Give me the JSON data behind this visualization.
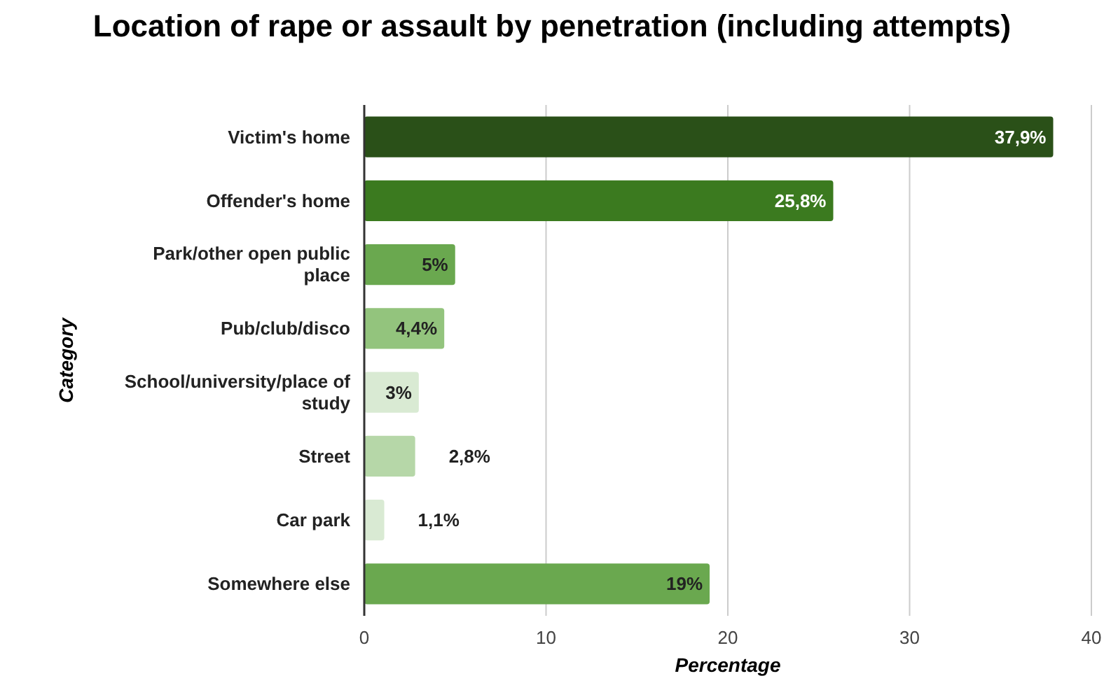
{
  "chart_data": {
    "type": "bar",
    "orientation": "horizontal",
    "title": "Location of rape or assault by penetration (including attempts)",
    "xlabel": "Percentage",
    "ylabel": "Category",
    "categories": [
      "Victim's home",
      "Offender's home",
      "Park/other open public place",
      "Pub/club/disco",
      "School/university/place of study",
      "Street",
      "Car park",
      "Somewhere else"
    ],
    "values": [
      37.9,
      25.8,
      5,
      4.4,
      3,
      2.8,
      1.1,
      19
    ],
    "colors": [
      "#2a5018",
      "#3b7a1f",
      "#6aa84f",
      "#93c47d",
      "#d9ead3",
      "#b6d7a8",
      "#d9ead3",
      "#6aa84f"
    ],
    "value_labels": [
      "37,9%",
      "25,8%",
      "5%",
      "4,4%",
      "3%",
      "2,8%",
      "1,1%",
      "19%"
    ],
    "xlim": [
      0,
      40
    ],
    "xticks": [
      0,
      10,
      20,
      30,
      40
    ],
    "grid": "x"
  }
}
